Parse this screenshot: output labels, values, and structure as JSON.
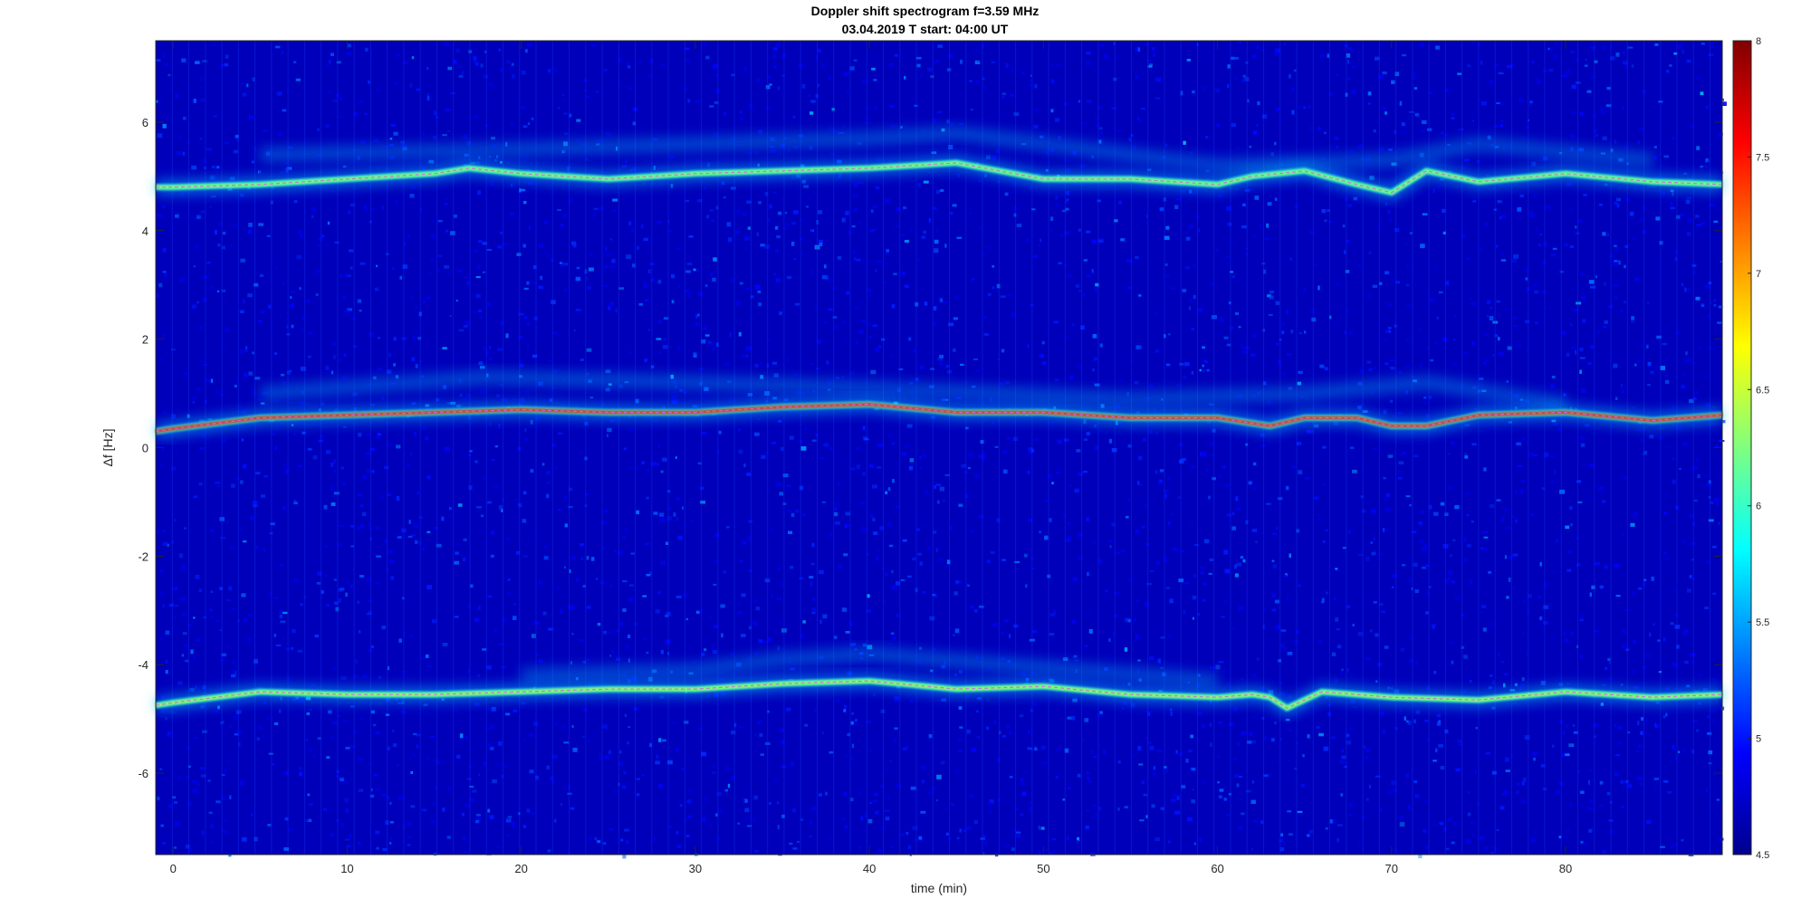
{
  "chart_data": {
    "type": "heatmap",
    "title": "Doppler shift spectrogram f=3.59 MHz",
    "subtitle": "03.04.2019    T start: 04:00 UT",
    "xlabel": "time (min)",
    "ylabel": "Δf [Hz]",
    "xlim": [
      -1,
      89
    ],
    "ylim": [
      -7.5,
      7.5
    ],
    "x_ticks": [
      0,
      10,
      20,
      30,
      40,
      50,
      60,
      70,
      80
    ],
    "y_ticks": [
      -6,
      -4,
      -2,
      0,
      2,
      4,
      6
    ],
    "colorbar": {
      "range": [
        4.5,
        8
      ],
      "ticks": [
        4.5,
        5,
        5.5,
        6,
        6.5,
        7,
        7.5,
        8
      ],
      "colormap": "jet"
    },
    "background_value": 4.7,
    "series": [
      {
        "peak_value": 6.3,
        "x": [
          -1,
          0,
          5,
          10,
          15,
          17,
          20,
          25,
          30,
          35,
          40,
          45,
          50,
          55,
          60,
          62,
          65,
          68,
          70,
          71,
          72,
          75,
          80,
          85,
          89
        ],
        "y": [
          4.8,
          4.8,
          4.85,
          4.95,
          5.05,
          5.15,
          5.05,
          4.95,
          5.05,
          5.1,
          5.15,
          5.25,
          4.95,
          4.95,
          4.85,
          5.0,
          5.1,
          4.85,
          4.7,
          4.9,
          5.1,
          4.9,
          5.05,
          4.9,
          4.85
        ]
      },
      {
        "peak_value": 7.5,
        "x": [
          -1,
          0,
          5,
          10,
          15,
          20,
          25,
          30,
          35,
          40,
          45,
          50,
          55,
          60,
          63,
          65,
          68,
          70,
          72,
          75,
          80,
          85,
          89
        ],
        "y": [
          0.3,
          0.35,
          0.55,
          0.6,
          0.65,
          0.7,
          0.65,
          0.65,
          0.75,
          0.8,
          0.65,
          0.65,
          0.55,
          0.55,
          0.4,
          0.55,
          0.55,
          0.4,
          0.4,
          0.6,
          0.65,
          0.5,
          0.6
        ]
      },
      {
        "peak_value": 6.4,
        "x": [
          -1,
          0,
          5,
          10,
          15,
          20,
          25,
          30,
          35,
          40,
          45,
          50,
          55,
          60,
          62,
          63,
          64,
          66,
          70,
          75,
          80,
          85,
          89
        ],
        "y": [
          -4.75,
          -4.7,
          -4.5,
          -4.55,
          -4.55,
          -4.5,
          -4.45,
          -4.45,
          -4.35,
          -4.3,
          -4.45,
          -4.4,
          -4.55,
          -4.6,
          -4.55,
          -4.6,
          -4.8,
          -4.5,
          -4.6,
          -4.65,
          -4.5,
          -4.6,
          -4.55
        ]
      }
    ],
    "diffuse_bands": [
      {
        "x": [
          5,
          20,
          40,
          45,
          60,
          70,
          75,
          85
        ],
        "y": [
          5.4,
          5.5,
          5.7,
          5.8,
          5.2,
          5.3,
          5.6,
          5.3
        ]
      },
      {
        "x": [
          5,
          18,
          30,
          40,
          55,
          65,
          72,
          80
        ],
        "y": [
          1.0,
          1.3,
          1.2,
          1.1,
          0.9,
          1.0,
          1.2,
          0.8
        ]
      },
      {
        "x": [
          20,
          30,
          35,
          40,
          60
        ],
        "y": [
          -4.2,
          -4.1,
          -3.9,
          -3.8,
          -4.3
        ]
      }
    ]
  }
}
